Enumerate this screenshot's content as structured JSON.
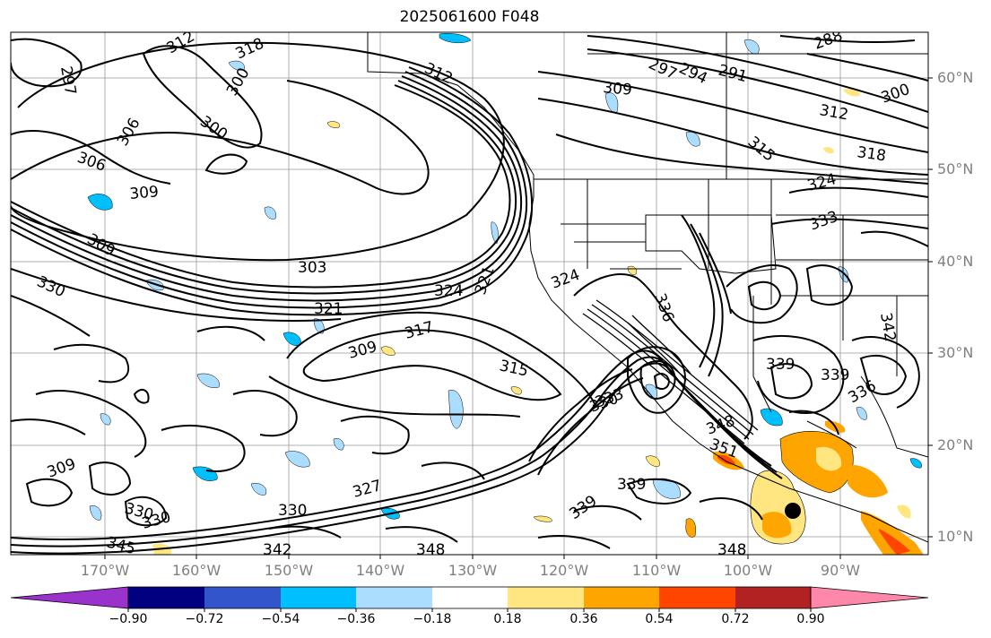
{
  "title": "2025061600 F048",
  "lat_labels": [
    "60°N",
    "50°N",
    "40°N",
    "30°N",
    "20°N",
    "10°N"
  ],
  "lon_labels": [
    "170°W",
    "160°W",
    "150°W",
    "140°W",
    "130°W",
    "120°W",
    "110°W",
    "100°W",
    "90°W"
  ],
  "contour_labels": [
    "297",
    "300",
    "318",
    "309",
    "300",
    "306",
    "309",
    "303",
    "306",
    "330",
    "321",
    "324",
    "321",
    "324",
    "312",
    "309",
    "317",
    "315",
    "330",
    "333",
    "339",
    "336",
    "330",
    "330",
    "327",
    "330",
    "345",
    "342",
    "348",
    "339",
    "348",
    "348",
    "339",
    "351",
    "342",
    "333",
    "339",
    "336",
    "324",
    "318",
    "312",
    "315",
    "291",
    "294",
    "297",
    "288",
    "300",
    "309",
    "312",
    "309"
  ],
  "colorbar": {
    "ticks": [
      "−0.90",
      "−0.72",
      "−0.54",
      "−0.36",
      "−0.18",
      "0.18",
      "0.36",
      "0.54",
      "0.72",
      "0.90"
    ],
    "colors": [
      "#9933cc",
      "#000080",
      "#3355cc",
      "#00bfff",
      "#aaddff",
      "#ffffff",
      "#ffe680",
      "#ffa500",
      "#ff4500",
      "#b22222",
      "#ff88aa"
    ]
  },
  "marker": "black-dot"
}
